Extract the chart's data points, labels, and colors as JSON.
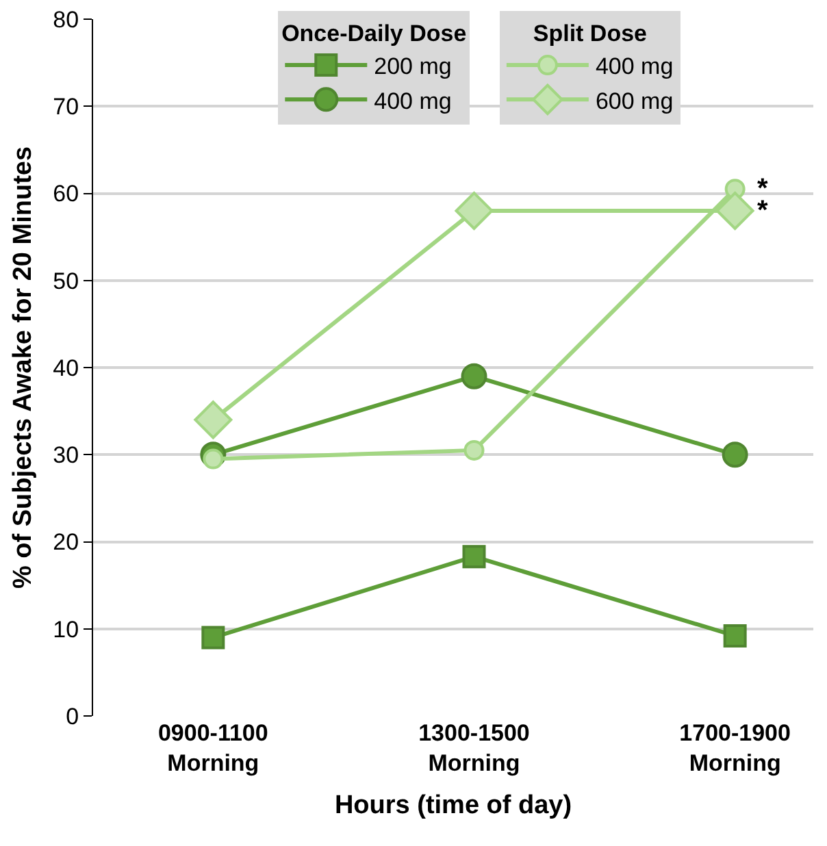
{
  "chart_data": {
    "type": "line",
    "xlabel": "Hours (time of day)",
    "ylabel": "% of Subjects Awake for 20 Minutes",
    "categories": [
      "0900-1100\nMorning",
      "1300-1500\nMorning",
      "1700-1900\nMorning"
    ],
    "legend_title": [
      "Once-Daily Dose",
      "Split Dose"
    ],
    "series": [
      {
        "name": "200 mg",
        "color": "#5e9e38",
        "marker": "square",
        "values": [
          9,
          18.3,
          9.2
        ]
      },
      {
        "name": "400 mg",
        "color": "#5e9e38",
        "marker": "circle",
        "values": [
          30,
          39,
          30
        ]
      },
      {
        "name": "400 mg",
        "color": "#a3d683",
        "marker": "circle",
        "values": [
          29.5,
          30.5,
          60.5
        ]
      },
      {
        "name": "600 mg",
        "color": "#a3d683",
        "marker": "diamond",
        "values": [
          34,
          58,
          58
        ]
      }
    ],
    "annotations": [
      {
        "text": "*",
        "x": "1700-1900\nMorning",
        "y": 60.5
      },
      {
        "text": "*",
        "x": "1700-1900\nMorning",
        "y": 58
      }
    ],
    "ylim": [
      0,
      80
    ],
    "yticks": [
      0,
      10,
      20,
      30,
      40,
      50,
      60,
      70,
      80
    ],
    "grid": "y",
    "legend": "top",
    "line_style": "solid"
  }
}
